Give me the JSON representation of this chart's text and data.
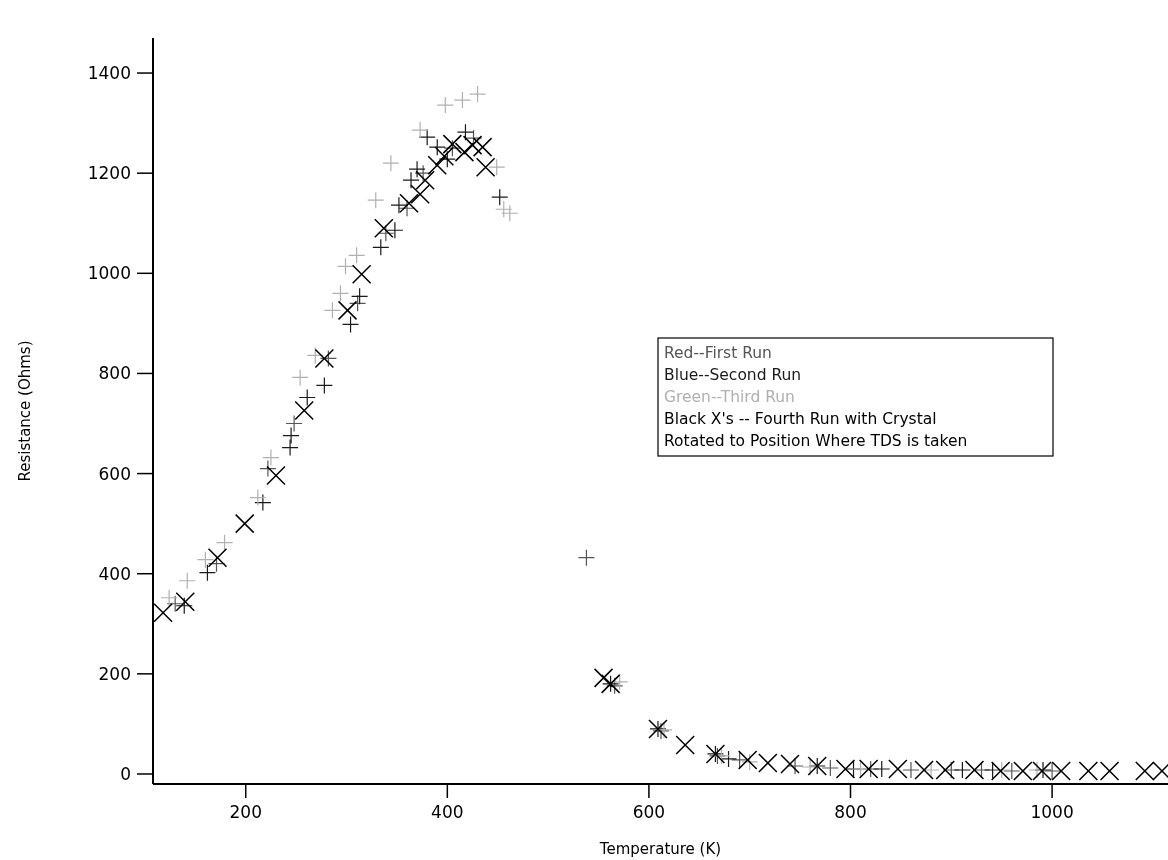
{
  "chart_data": {
    "type": "scatter",
    "xlabel": "Temperature (K)",
    "ylabel": "Resistance (Ohms)",
    "xlim": [
      108,
      1115
    ],
    "ylim": [
      -20,
      1470
    ],
    "xticks": [
      200,
      400,
      600,
      800,
      1000
    ],
    "yticks": [
      0,
      200,
      400,
      600,
      800,
      1000,
      1200,
      1400
    ],
    "grid": false,
    "legend": "right",
    "series": [
      {
        "name": "Red--First Run",
        "color": "#555555",
        "marker": "plus",
        "x": [
          130,
          171,
          222,
          248,
          282,
          311,
          339,
          360,
          376,
          405,
          426,
          538,
          566,
          612,
          668,
          690,
          745,
          780,
          820,
          860,
          900,
          930,
          960,
          1000
        ],
        "values": [
          340,
          420,
          610,
          700,
          830,
          940,
          1080,
          1130,
          1200,
          1250,
          1270,
          432,
          176,
          86,
          36,
          28,
          16,
          12,
          10,
          8,
          8,
          8,
          6,
          6
        ]
      },
      {
        "name": "Blue--Second Run",
        "color": "#1a1a1a",
        "marker": "plus",
        "x": [
          139,
          162,
          217,
          244,
          245,
          261,
          278,
          304,
          313,
          334,
          348,
          352,
          364,
          370,
          380,
          390,
          400,
          418,
          452,
          562,
          609,
          666,
          679,
          767,
          803,
          831,
          911,
          941,
          991
        ],
        "values": [
          336,
          402,
          542,
          652,
          676,
          752,
          776,
          898,
          954,
          1052,
          1086,
          1136,
          1186,
          1208,
          1272,
          1252,
          1228,
          1282,
          1152,
          180,
          90,
          40,
          30,
          16,
          10,
          10,
          8,
          8,
          8
        ]
      },
      {
        "name": "Green--Third Run",
        "color": "#b0b0b0",
        "marker": "plus",
        "x": [
          124,
          142,
          160,
          179,
          212,
          225,
          254,
          269,
          286,
          294,
          299,
          310,
          329,
          344,
          373,
          398,
          415,
          430,
          449,
          456,
          462,
          571,
          615,
          672,
          700,
          760,
          810,
          880,
          950,
          985
        ],
        "values": [
          352,
          386,
          428,
          462,
          552,
          632,
          792,
          836,
          926,
          960,
          1014,
          1036,
          1146,
          1220,
          1286,
          1336,
          1346,
          1358,
          1212,
          1128,
          1120,
          184,
          88,
          36,
          24,
          14,
          10,
          8,
          8,
          8
        ]
      },
      {
        "name": "Black X's -- Fourth Run with Crystal Rotated to Position Where TDS is taken",
        "color": "#000000",
        "marker": "cross",
        "x": [
          118,
          140,
          172,
          199,
          230,
          258,
          278,
          301,
          315,
          337,
          362,
          373,
          378,
          390,
          397,
          405,
          417,
          425,
          435,
          438,
          555,
          562,
          609,
          636,
          666,
          698,
          718,
          740,
          767,
          795,
          818,
          847,
          873,
          894,
          923,
          949,
          971,
          990,
          1009,
          1036,
          1057,
          1092,
          1109
        ],
        "values": [
          322,
          344,
          432,
          500,
          596,
          726,
          830,
          926,
          998,
          1090,
          1140,
          1158,
          1186,
          1216,
          1234,
          1258,
          1242,
          1256,
          1252,
          1212,
          192,
          180,
          90,
          58,
          40,
          28,
          22,
          20,
          16,
          10,
          10,
          10,
          8,
          8,
          8,
          6,
          6,
          6,
          6,
          6,
          6,
          6,
          6
        ]
      }
    ]
  }
}
